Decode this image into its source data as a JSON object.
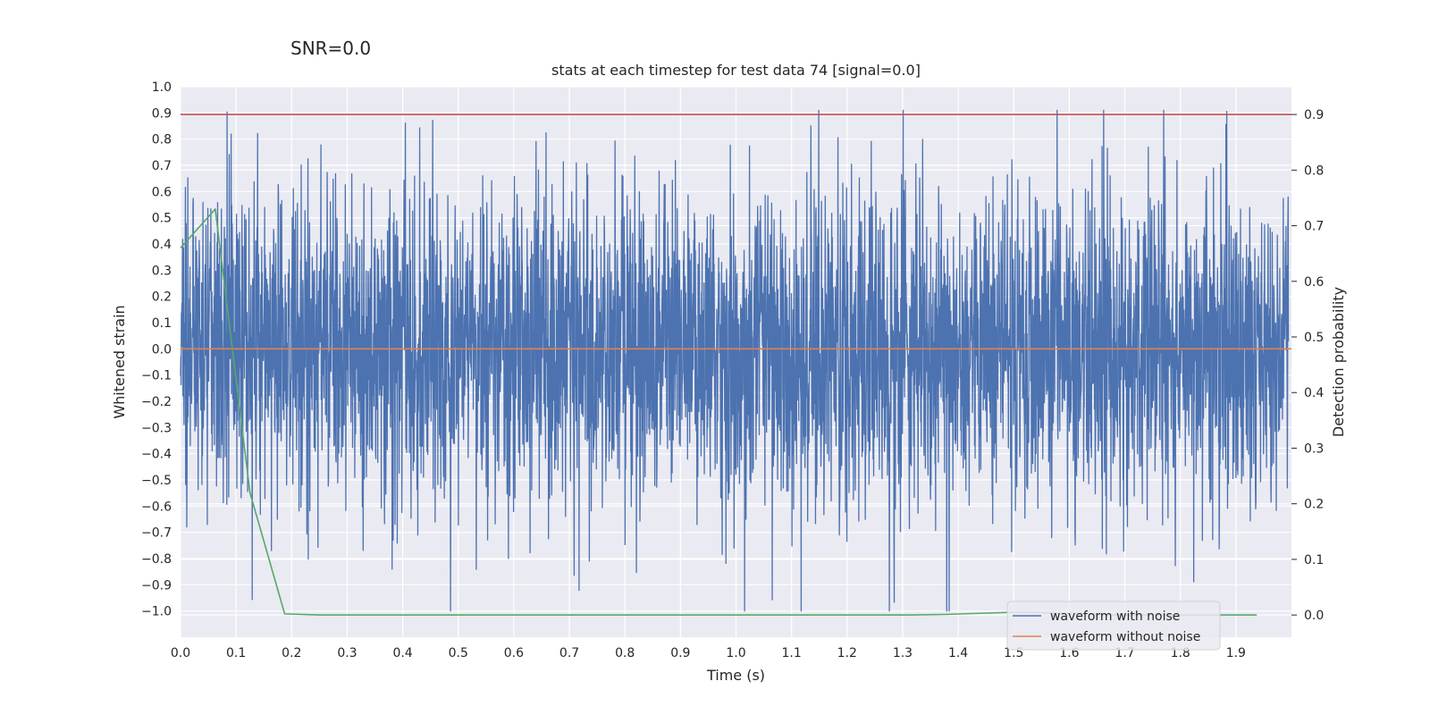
{
  "suptitle": "SNR=0.0",
  "chart_data": {
    "type": "line",
    "title": "stats at each timestep for test data 74 [signal=0.0]",
    "xlabel": "Time (s)",
    "ylabel": "Whitened strain",
    "y2label": "Detection probability",
    "xlim": [
      0.0,
      2.0
    ],
    "ylim": [
      -1.1,
      1.0
    ],
    "y2lim": [
      -0.04,
      0.95
    ],
    "grid": true,
    "legend_position": "lower-right",
    "x_ticks": [
      "0.0",
      "0.1",
      "0.2",
      "0.3",
      "0.4",
      "0.5",
      "0.6",
      "0.7",
      "0.8",
      "0.9",
      "1.0",
      "1.1",
      "1.2",
      "1.3",
      "1.4",
      "1.5",
      "1.6",
      "1.7",
      "1.8",
      "1.9"
    ],
    "y_ticks": [
      "1.0",
      "0.9",
      "0.8",
      "0.7",
      "0.6",
      "0.5",
      "0.4",
      "0.3",
      "0.2",
      "0.1",
      "0.0",
      "−0.1",
      "−0.2",
      "−0.3",
      "−0.4",
      "−0.5",
      "−0.6",
      "−0.7",
      "−0.8",
      "−0.9",
      "−1.0"
    ],
    "y2_ticks": [
      "0.9",
      "0.8",
      "0.7",
      "0.6",
      "0.5",
      "0.4",
      "0.3",
      "0.2",
      "0.1",
      "0.0"
    ],
    "noise_seed": 74,
    "noise_points": 4096,
    "noise_std": 0.3,
    "noise_range": [
      -1.0,
      0.91
    ],
    "series": [
      {
        "name": "waveform with noise",
        "axis": "left",
        "color": "#4c72b0",
        "kind": "noise"
      },
      {
        "name": "waveform without noise",
        "axis": "left",
        "color": "#dd8452",
        "x": [
          0.0,
          2.0
        ],
        "values": [
          0.0,
          0.0
        ]
      },
      {
        "axis": "right",
        "color": "#55a868",
        "x": [
          0.0,
          0.0625,
          0.125,
          0.1875,
          0.25,
          0.3125,
          0.375,
          0.4375,
          0.5,
          0.5625,
          0.625,
          0.6875,
          0.75,
          0.8125,
          0.875,
          0.9375,
          1.0,
          1.0625,
          1.125,
          1.1875,
          1.25,
          1.3125,
          1.375,
          1.4375,
          1.5,
          1.5625,
          1.625,
          1.6875,
          1.75,
          1.8125,
          1.875,
          1.9375
        ],
        "values": [
          0.66,
          0.73,
          0.22,
          0.002,
          0.0,
          0.0,
          0.0,
          0.0,
          0.0,
          0.0,
          0.0,
          0.0,
          0.0,
          0.0,
          0.0,
          0.0,
          0.0,
          0.0,
          0.0,
          0.0,
          0.0,
          0.0,
          0.001,
          0.003,
          0.005,
          0.004,
          0.002,
          0.0,
          0.0,
          0.0,
          0.0,
          0.0
        ]
      },
      {
        "axis": "right",
        "color": "#c44e52",
        "x": [
          0.0,
          2.0
        ],
        "values": [
          0.9,
          0.9
        ]
      }
    ]
  }
}
